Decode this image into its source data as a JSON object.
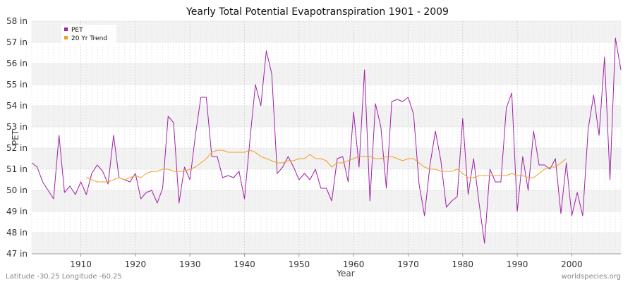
{
  "chart_data": {
    "type": "line",
    "title": "Yearly Total Potential Evapotranspiration 1901 - 2009",
    "xlabel": "Year",
    "ylabel": "PET",
    "xlim": [
      1901,
      2009
    ],
    "ylim": [
      47,
      58
    ],
    "x_ticks": [
      1910,
      1920,
      1930,
      1940,
      1950,
      1960,
      1970,
      1980,
      1990,
      2000
    ],
    "y_ticks": [
      {
        "value": 47,
        "label": "47 in"
      },
      {
        "value": 48,
        "label": "48 in"
      },
      {
        "value": 49,
        "label": "49 in"
      },
      {
        "value": 50,
        "label": "50 in"
      },
      {
        "value": 51,
        "label": "51 in"
      },
      {
        "value": 52,
        "label": "52 in"
      },
      {
        "value": 53,
        "label": "53 in"
      },
      {
        "value": 54,
        "label": "54 in"
      },
      {
        "value": 55,
        "label": "55 in"
      },
      {
        "value": 56,
        "label": "56 in"
      },
      {
        "value": 57,
        "label": "57 in"
      },
      {
        "value": 58,
        "label": "58 in"
      }
    ],
    "grid": true,
    "legend_position": "top-left",
    "series": [
      {
        "name": "PET",
        "color": "#a020a8",
        "start_year": 1901,
        "values": [
          51.3,
          51.1,
          50.4,
          50.0,
          49.6,
          52.6,
          49.9,
          50.2,
          49.8,
          50.4,
          49.8,
          50.8,
          51.2,
          50.9,
          50.3,
          52.6,
          50.6,
          50.5,
          50.4,
          50.8,
          49.6,
          49.9,
          50.0,
          49.4,
          50.1,
          53.5,
          53.2,
          49.4,
          51.1,
          50.5,
          52.6,
          54.4,
          54.4,
          51.6,
          51.6,
          50.6,
          50.7,
          50.6,
          50.9,
          49.6,
          52.4,
          55.0,
          54.0,
          56.6,
          55.5,
          50.8,
          51.1,
          51.6,
          51.1,
          50.5,
          50.8,
          50.5,
          51.0,
          50.1,
          50.1,
          49.5,
          51.5,
          51.6,
          50.4,
          53.7,
          51.1,
          55.7,
          49.5,
          54.1,
          53.0,
          50.1,
          54.2,
          54.3,
          54.2,
          54.4,
          53.6,
          50.3,
          48.8,
          51.2,
          52.8,
          51.4,
          49.2,
          49.5,
          49.7,
          53.4,
          49.8,
          51.5,
          49.4,
          47.5,
          51.0,
          50.4,
          50.4,
          53.9,
          54.6,
          49.0,
          51.6,
          50.0,
          52.8,
          51.2,
          51.2,
          51.0,
          51.5,
          48.9,
          51.3,
          48.8,
          49.9,
          48.8,
          52.9,
          54.5,
          52.6,
          56.3,
          50.5,
          57.2,
          55.7
        ]
      },
      {
        "name": "20 Yr Trend",
        "color": "#f0a020",
        "start_year": 1911,
        "values": [
          50.6,
          50.5,
          50.4,
          50.4,
          50.4,
          50.5,
          50.6,
          50.5,
          50.6,
          50.7,
          50.6,
          50.8,
          50.9,
          50.9,
          51.0,
          51.0,
          50.9,
          50.9,
          50.9,
          51.0,
          51.1,
          51.3,
          51.5,
          51.8,
          51.9,
          51.9,
          51.8,
          51.8,
          51.8,
          51.8,
          51.9,
          51.8,
          51.6,
          51.5,
          51.4,
          51.3,
          51.3,
          51.4,
          51.4,
          51.5,
          51.5,
          51.7,
          51.5,
          51.5,
          51.4,
          51.1,
          51.3,
          51.3,
          51.4,
          51.5,
          51.6,
          51.6,
          51.6,
          51.5,
          51.5,
          51.6,
          51.6,
          51.5,
          51.4,
          51.5,
          51.5,
          51.3,
          51.1,
          51.0,
          51.0,
          50.9,
          50.9,
          50.9,
          51.0,
          50.8,
          50.6,
          50.6,
          50.7,
          50.7,
          50.7,
          50.7,
          50.7,
          50.7,
          50.8,
          50.7,
          50.7,
          50.6,
          50.6,
          50.8,
          51.0,
          51.1,
          51.1,
          51.3,
          51.5
        ]
      }
    ],
    "legend": [
      "PET",
      "20 Yr Trend"
    ]
  },
  "footer": {
    "left": "Latitude -30.25 Longitude -60.25",
    "right": "worldspecies.org"
  },
  "colors": {
    "band_light": "#ffffff",
    "band_dark": "#f2f2f2",
    "grid": "#dddddd",
    "axis": "#999999"
  }
}
